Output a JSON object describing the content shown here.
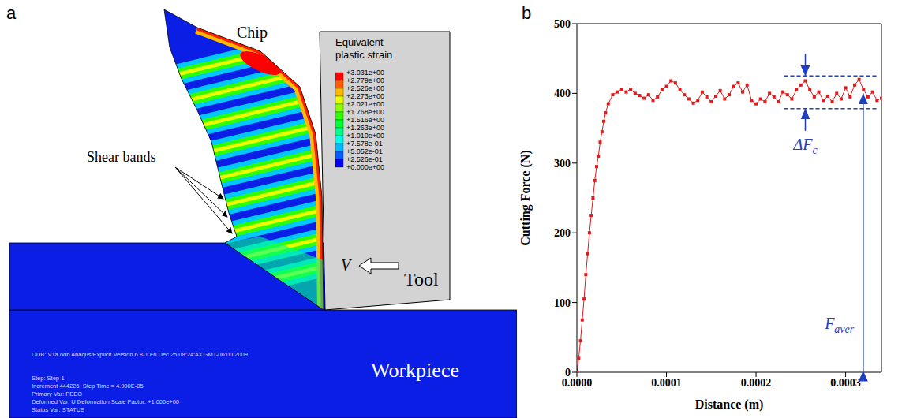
{
  "diagram": {
    "letter": "a",
    "labels": {
      "chip": "Chip",
      "shear_bands": "Shear bands",
      "tool": "Tool",
      "velocity": "V",
      "workpiece": "Workpiece"
    },
    "color_bar": {
      "title": "Equivalent plastic strain",
      "range": [
        0,
        3.031
      ],
      "ticks": [
        {
          "value": 3.031,
          "label": "+3.031e+00"
        },
        {
          "value": 2.779,
          "label": "+2.779e+00"
        },
        {
          "value": 2.526,
          "label": "+2.526e+00"
        },
        {
          "value": 2.273,
          "label": "+2.273e+00"
        },
        {
          "value": 2.021,
          "label": "+2.021e+00"
        },
        {
          "value": 1.768,
          "label": "+1.768e+00"
        },
        {
          "value": 1.516,
          "label": "+1.516e+00"
        },
        {
          "value": 1.263,
          "label": "+1.263e+00"
        },
        {
          "value": 1.01,
          "label": "+1.010e+00"
        },
        {
          "value": 0.7578,
          "label": "+7.578e-01"
        },
        {
          "value": 0.5052,
          "label": "+5.052e-01"
        },
        {
          "value": 0.2526,
          "label": "+2.526e-01"
        },
        {
          "value": 0,
          "label": "+0.000e+00"
        }
      ]
    },
    "footer": [
      "ODB: V1a.odb   Abaqus/Explicit Version 6.8-1   Fri Dec 25 08:24:43 GMT-06:00 2009",
      "Step: Step-1",
      "Increment  444226: Step Time =  4.900E-05",
      "Primary Var: PEEQ",
      "Deformed Var: U   Deformation Scale Factor: +1.000e+00",
      "Status Var: STATUS"
    ]
  },
  "chart_data": {
    "letter": "b",
    "type": "line",
    "x_label": "Distance (m)",
    "y_label": "Cutting Force (N)",
    "color": "#e31a1c",
    "marker": "square",
    "xlim": [
      0,
      0.00034
    ],
    "xticks": [
      {
        "value": 0,
        "label": "0.0000"
      },
      {
        "value": 0.0001,
        "label": "0.0001"
      },
      {
        "value": 0.0002,
        "label": "0.0002"
      },
      {
        "value": 0.0003,
        "label": "0.0003"
      }
    ],
    "ylim": [
      0,
      500
    ],
    "yticks": [
      0,
      100,
      200,
      300,
      400,
      500
    ],
    "x": [
      0,
      2e-06,
      4e-06,
      6e-06,
      8e-06,
      1e-05,
      1.2e-05,
      1.4e-05,
      1.6e-05,
      1.8e-05,
      2e-05,
      2.2e-05,
      2.4e-05,
      2.6e-05,
      2.8e-05,
      3e-05,
      3.2e-05,
      3.5e-05,
      4e-05,
      4.5e-05,
      5e-05,
      5.5e-05,
      6e-05,
      6.5e-05,
      7e-05,
      7.5e-05,
      8e-05,
      8.5e-05,
      9e-05,
      9.5e-05,
      0.0001,
      0.000105,
      0.00011,
      0.000115,
      0.00012,
      0.000125,
      0.00013,
      0.000135,
      0.00014,
      0.000145,
      0.00015,
      0.000155,
      0.00016,
      0.000165,
      0.00017,
      0.000175,
      0.00018,
      0.000185,
      0.00019,
      0.000195,
      0.0002,
      0.000205,
      0.00021,
      0.000215,
      0.00022,
      0.000225,
      0.00023,
      0.000235,
      0.00024,
      0.000245,
      0.00025,
      0.000255,
      0.00026,
      0.000265,
      0.00027,
      0.000275,
      0.00028,
      0.000285,
      0.00029,
      0.000295,
      0.0003,
      0.000305,
      0.00031,
      0.000315,
      0.00032,
      0.000325,
      0.00033,
      0.000335,
      0.00034
    ],
    "values": [
      0,
      20,
      45,
      75,
      105,
      140,
      170,
      200,
      225,
      250,
      275,
      295,
      310,
      330,
      345,
      360,
      372,
      385,
      398,
      402,
      405,
      402,
      406,
      400,
      397,
      393,
      398,
      390,
      395,
      405,
      410,
      418,
      415,
      405,
      398,
      392,
      386,
      390,
      402,
      395,
      388,
      396,
      404,
      392,
      398,
      410,
      415,
      402,
      412,
      390,
      385,
      392,
      388,
      400,
      395,
      388,
      402,
      398,
      392,
      405,
      412,
      418,
      405,
      395,
      402,
      390,
      396,
      388,
      400,
      392,
      408,
      395,
      412,
      420,
      405,
      395,
      402,
      390,
      393
    ],
    "annotations": {
      "delta_fc": {
        "label": "ΔF",
        "subscript": "c",
        "band": [
          378,
          425
        ]
      },
      "f_aver": {
        "label": "F",
        "subscript": "aver",
        "value": 400
      }
    }
  }
}
